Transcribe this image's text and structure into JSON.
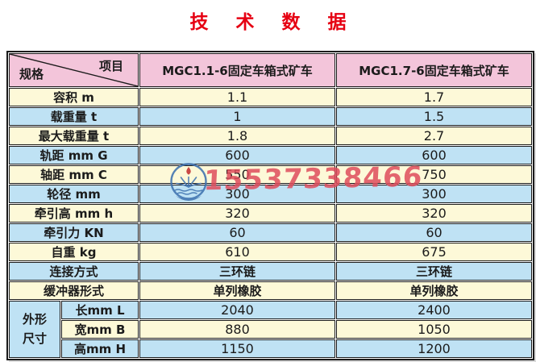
{
  "title": "技 术 数 据",
  "table": {
    "corner": {
      "top_right": "项目",
      "bottom_left": "规格"
    },
    "col_headers": [
      "MGC1.1-6固定车箱式矿车",
      "MGC1.7-6固定车箱式矿车"
    ],
    "rows": [
      {
        "label": "容积 m",
        "v1": "1.1",
        "v2": "1.7"
      },
      {
        "label": "载重量 t",
        "v1": "1",
        "v2": "1.5"
      },
      {
        "label": "最大载重量 t",
        "v1": "1.8",
        "v2": "2.7"
      },
      {
        "label": "轨距 mm G",
        "v1": "600",
        "v2": "600"
      },
      {
        "label": "轴距 mm C",
        "v1": "550",
        "v2": "750"
      },
      {
        "label": "轮径 mm",
        "v1": "300",
        "v2": "300"
      },
      {
        "label": "牵引高 mm h",
        "v1": "320",
        "v2": "320"
      },
      {
        "label": "牵引力 KN",
        "v1": "60",
        "v2": "60"
      },
      {
        "label": "自重 kg",
        "v1": "610",
        "v2": "675"
      },
      {
        "label": "连接方式",
        "v1": "三环链",
        "v2": "三环链"
      },
      {
        "label": "缓冲器形式",
        "v1": "单列橡胶",
        "v2": "单列橡胶"
      }
    ],
    "dim_group": {
      "label": "外形尺寸",
      "rows": [
        {
          "label": "长mm L",
          "v1": "2040",
          "v2": "2400"
        },
        {
          "label": "宽mm B",
          "v1": "880",
          "v2": "1050"
        },
        {
          "label": "高mm H",
          "v1": "1150",
          "v2": "1200"
        }
      ]
    }
  },
  "watermark": {
    "phone": "15537338466"
  },
  "colors": {
    "title_red": "#e60012",
    "header_pink": "#f3c5da",
    "row_cream": "#fdf9d8",
    "row_blue": "#bfe2f4",
    "phone_red": "#de4c5c",
    "logo_blue": "#3f73b0",
    "border_dark": "#1b1b1b"
  }
}
